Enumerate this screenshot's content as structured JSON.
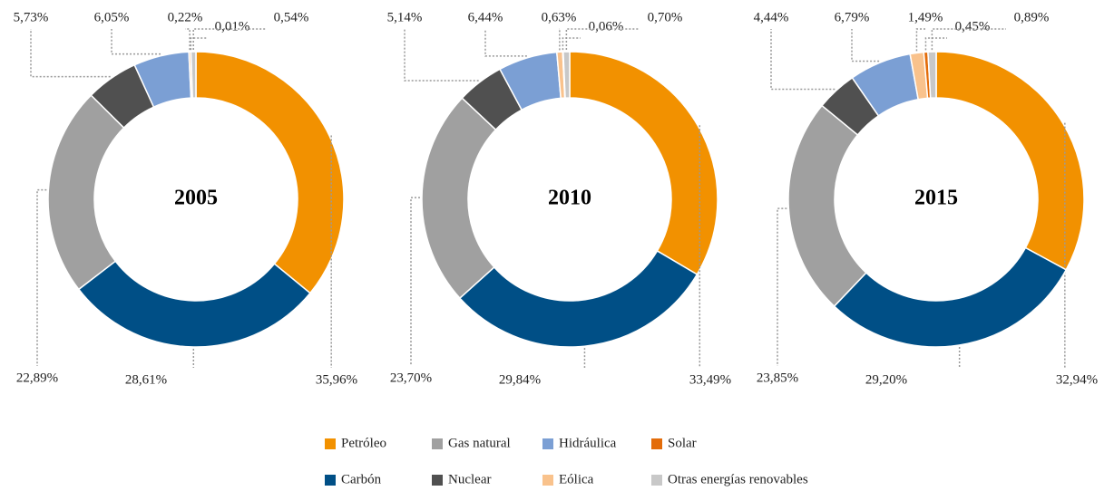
{
  "chart_data": [
    {
      "type": "donut",
      "title": "2005",
      "categories": [
        "Petróleo",
        "Carbón",
        "Gas natural",
        "Nuclear",
        "Hidráulica",
        "Eólica",
        "Solar",
        "Otras energías renovables"
      ],
      "colors": [
        "#f29100",
        "#004f86",
        "#a0a0a0",
        "#505050",
        "#7b9fd4",
        "#f9c28c",
        "#e36c0a",
        "#c8c8c8"
      ],
      "values": [
        35.96,
        28.61,
        22.89,
        5.73,
        6.05,
        0.22,
        0.01,
        0.54
      ],
      "value_labels": [
        "35,96%",
        "28,61%",
        "22,89%",
        "5,73%",
        "6,05%",
        "0,22%",
        "0,01%",
        "0,54%"
      ]
    },
    {
      "type": "donut",
      "title": "2010",
      "categories": [
        "Petróleo",
        "Carbón",
        "Gas natural",
        "Nuclear",
        "Hidráulica",
        "Eólica",
        "Solar",
        "Otras energías renovables"
      ],
      "colors": [
        "#f29100",
        "#004f86",
        "#a0a0a0",
        "#505050",
        "#7b9fd4",
        "#f9c28c",
        "#e36c0a",
        "#c8c8c8"
      ],
      "values": [
        33.49,
        29.84,
        23.7,
        5.14,
        6.44,
        0.63,
        0.06,
        0.7
      ],
      "value_labels": [
        "33,49%",
        "29,84%",
        "23,70%",
        "5,14%",
        "6,44%",
        "0,63%",
        "0,06%",
        "0,70%"
      ]
    },
    {
      "type": "donut",
      "title": "2015",
      "categories": [
        "Petróleo",
        "Carbón",
        "Gas natural",
        "Nuclear",
        "Hidráulica",
        "Eólica",
        "Solar",
        "Otras energías renovables"
      ],
      "colors": [
        "#f29100",
        "#004f86",
        "#a0a0a0",
        "#505050",
        "#7b9fd4",
        "#f9c28c",
        "#e36c0a",
        "#c8c8c8"
      ],
      "values": [
        32.94,
        29.2,
        23.85,
        4.44,
        6.79,
        1.49,
        0.45,
        0.89
      ],
      "value_labels": [
        "32,94%",
        "29,20%",
        "23,85%",
        "4,44%",
        "6,79%",
        "1,49%",
        "0,45%",
        "0,89%"
      ]
    }
  ]
}
